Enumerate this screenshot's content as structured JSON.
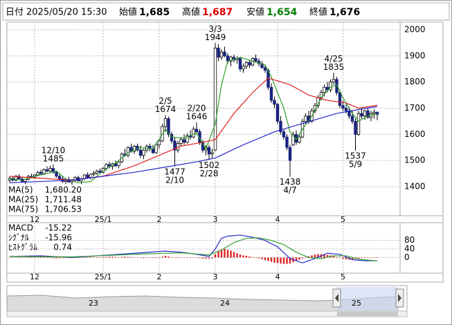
{
  "header": {
    "date_label": "日付",
    "datetime": "2025/05/20 15:30",
    "fields": [
      {
        "label": "始値",
        "value": "1,685"
      },
      {
        "label": "高値",
        "value": "1,687"
      },
      {
        "label": "安値",
        "value": "1,654"
      },
      {
        "label": "終値",
        "value": "1,676"
      }
    ]
  },
  "chart_data": {
    "type": "candlestick",
    "ylim": [
      1289,
      2029
    ],
    "yticks": [
      1400,
      1500,
      1600,
      1700,
      1800,
      1900,
      2000
    ],
    "grid": true,
    "xticks": [
      {
        "value": 8,
        "label": "12"
      },
      {
        "value": 30,
        "label": "25/1"
      },
      {
        "value": 48,
        "label": "2"
      },
      {
        "value": 66,
        "label": "3"
      },
      {
        "value": 86,
        "label": "4"
      },
      {
        "value": 107,
        "label": "5"
      }
    ],
    "up_color": "#ffffff",
    "down_color": "#1a237e",
    "ohlc": [
      [
        1425,
        1440,
        1415,
        1432
      ],
      [
        1432,
        1438,
        1420,
        1425
      ],
      [
        1425,
        1445,
        1420,
        1440
      ],
      [
        1440,
        1448,
        1428,
        1430
      ],
      [
        1430,
        1436,
        1415,
        1420
      ],
      [
        1420,
        1430,
        1410,
        1428
      ],
      [
        1428,
        1445,
        1425,
        1440
      ],
      [
        1440,
        1450,
        1432,
        1436
      ],
      [
        1436,
        1448,
        1430,
        1445
      ],
      [
        1445,
        1460,
        1440,
        1455
      ],
      [
        1455,
        1465,
        1445,
        1450
      ],
      [
        1450,
        1470,
        1448,
        1465
      ],
      [
        1465,
        1478,
        1455,
        1460
      ],
      [
        1460,
        1480,
        1455,
        1470
      ],
      [
        1470,
        1485,
        1450,
        1455
      ],
      [
        1455,
        1460,
        1435,
        1440
      ],
      [
        1440,
        1448,
        1425,
        1430
      ],
      [
        1430,
        1440,
        1415,
        1420
      ],
      [
        1420,
        1432,
        1410,
        1428
      ],
      [
        1428,
        1438,
        1415,
        1418
      ],
      [
        1418,
        1430,
        1405,
        1425
      ],
      [
        1425,
        1440,
        1418,
        1435
      ],
      [
        1435,
        1442,
        1420,
        1422
      ],
      [
        1422,
        1435,
        1410,
        1430
      ],
      [
        1430,
        1448,
        1425,
        1445
      ],
      [
        1445,
        1455,
        1430,
        1435
      ],
      [
        1435,
        1450,
        1428,
        1448
      ],
      [
        1448,
        1460,
        1440,
        1452
      ],
      [
        1452,
        1465,
        1445,
        1460
      ],
      [
        1460,
        1470,
        1450,
        1455
      ],
      [
        1455,
        1475,
        1450,
        1470
      ],
      [
        1470,
        1490,
        1462,
        1485
      ],
      [
        1485,
        1495,
        1470,
        1478
      ],
      [
        1478,
        1492,
        1465,
        1488
      ],
      [
        1488,
        1500,
        1475,
        1480
      ],
      [
        1480,
        1498,
        1470,
        1495
      ],
      [
        1495,
        1530,
        1490,
        1525
      ],
      [
        1525,
        1545,
        1515,
        1520
      ],
      [
        1520,
        1555,
        1512,
        1550
      ],
      [
        1550,
        1565,
        1530,
        1535
      ],
      [
        1535,
        1560,
        1525,
        1555
      ],
      [
        1555,
        1565,
        1535,
        1540
      ],
      [
        1540,
        1558,
        1510,
        1520
      ],
      [
        1520,
        1545,
        1505,
        1540
      ],
      [
        1540,
        1562,
        1530,
        1555
      ],
      [
        1555,
        1565,
        1535,
        1545
      ],
      [
        1545,
        1560,
        1525,
        1530
      ],
      [
        1530,
        1568,
        1525,
        1560
      ],
      [
        1560,
        1580,
        1545,
        1575
      ],
      [
        1575,
        1640,
        1570,
        1630
      ],
      [
        1630,
        1674,
        1610,
        1660
      ],
      [
        1660,
        1668,
        1590,
        1600
      ],
      [
        1600,
        1610,
        1565,
        1575
      ],
      [
        1575,
        1590,
        1477,
        1540
      ],
      [
        1540,
        1575,
        1530,
        1565
      ],
      [
        1565,
        1590,
        1555,
        1580
      ],
      [
        1580,
        1600,
        1560,
        1570
      ],
      [
        1570,
        1605,
        1565,
        1595
      ],
      [
        1595,
        1615,
        1580,
        1590
      ],
      [
        1590,
        1630,
        1585,
        1620
      ],
      [
        1620,
        1646,
        1600,
        1610
      ],
      [
        1610,
        1620,
        1560,
        1570
      ],
      [
        1570,
        1580,
        1530,
        1540
      ],
      [
        1540,
        1560,
        1520,
        1550
      ],
      [
        1550,
        1560,
        1502,
        1525
      ],
      [
        1525,
        1545,
        1510,
        1530
      ],
      [
        1540,
        1949,
        1535,
        1930
      ],
      [
        1930,
        1945,
        1880,
        1895
      ],
      [
        1895,
        1925,
        1885,
        1915
      ],
      [
        1915,
        1935,
        1895,
        1900
      ],
      [
        1900,
        1910,
        1870,
        1880
      ],
      [
        1880,
        1900,
        1860,
        1895
      ],
      [
        1895,
        1905,
        1875,
        1885
      ],
      [
        1885,
        1898,
        1870,
        1890
      ],
      [
        1890,
        1895,
        1840,
        1850
      ],
      [
        1850,
        1870,
        1835,
        1860
      ],
      [
        1860,
        1880,
        1850,
        1875
      ],
      [
        1875,
        1885,
        1855,
        1865
      ],
      [
        1865,
        1895,
        1860,
        1890
      ],
      [
        1890,
        1905,
        1875,
        1880
      ],
      [
        1880,
        1890,
        1860,
        1870
      ],
      [
        1870,
        1880,
        1850,
        1855
      ],
      [
        1855,
        1865,
        1835,
        1845
      ],
      [
        1845,
        1850,
        1770,
        1780
      ],
      [
        1780,
        1795,
        1720,
        1730
      ],
      [
        1730,
        1745,
        1700,
        1715
      ],
      [
        1715,
        1720,
        1640,
        1650
      ],
      [
        1650,
        1670,
        1600,
        1610
      ],
      [
        1610,
        1620,
        1580,
        1590
      ],
      [
        1590,
        1600,
        1540,
        1550
      ],
      [
        1550,
        1560,
        1438,
        1500
      ],
      [
        1560,
        1610,
        1555,
        1600
      ],
      [
        1600,
        1615,
        1560,
        1570
      ],
      [
        1570,
        1600,
        1565,
        1590
      ],
      [
        1590,
        1660,
        1585,
        1650
      ],
      [
        1650,
        1680,
        1640,
        1670
      ],
      [
        1670,
        1690,
        1640,
        1650
      ],
      [
        1650,
        1700,
        1645,
        1690
      ],
      [
        1690,
        1720,
        1680,
        1710
      ],
      [
        1710,
        1750,
        1700,
        1740
      ],
      [
        1740,
        1770,
        1730,
        1760
      ],
      [
        1760,
        1790,
        1745,
        1780
      ],
      [
        1780,
        1800,
        1760,
        1770
      ],
      [
        1770,
        1810,
        1760,
        1800
      ],
      [
        1800,
        1835,
        1790,
        1810
      ],
      [
        1810,
        1820,
        1750,
        1760
      ],
      [
        1760,
        1770,
        1700,
        1710
      ],
      [
        1710,
        1730,
        1690,
        1700
      ],
      [
        1700,
        1715,
        1680,
        1690
      ],
      [
        1690,
        1705,
        1660,
        1670
      ],
      [
        1670,
        1690,
        1640,
        1650
      ],
      [
        1650,
        1660,
        1537,
        1600
      ],
      [
        1600,
        1690,
        1595,
        1680
      ],
      [
        1680,
        1700,
        1660,
        1670
      ],
      [
        1670,
        1695,
        1655,
        1690
      ],
      [
        1690,
        1700,
        1660,
        1665
      ],
      [
        1665,
        1690,
        1650,
        1680
      ],
      [
        1680,
        1695,
        1660,
        1685
      ],
      [
        1685,
        1687,
        1654,
        1676
      ]
    ],
    "annotations": [
      {
        "index": 14,
        "date": "12/10",
        "price": 1485,
        "pos": "above"
      },
      {
        "index": 50,
        "date": "2/5",
        "price": 1674,
        "pos": "above"
      },
      {
        "index": 53,
        "date": "2/10",
        "price": 1477,
        "pos": "below"
      },
      {
        "index": 60,
        "date": "2/20",
        "price": 1646,
        "pos": "above"
      },
      {
        "index": 64,
        "date": "2/28",
        "price": 1502,
        "pos": "below"
      },
      {
        "index": 66,
        "date": "3/3",
        "price": 1949,
        "pos": "above"
      },
      {
        "index": 90,
        "date": "4/7",
        "price": 1438,
        "pos": "below"
      },
      {
        "index": 104,
        "date": "4/25",
        "price": 1835,
        "pos": "above"
      },
      {
        "index": 111,
        "date": "5/9",
        "price": 1537,
        "pos": "below"
      }
    ],
    "ma": [
      {
        "name": "MA(5)",
        "color": "#2e9e2e",
        "current": {
          "value": 1680.2,
          "label": "1,680.20"
        },
        "x": [
          0,
          4,
          8,
          12,
          15,
          18,
          22,
          26,
          30,
          34,
          38,
          42,
          46,
          50,
          52,
          56,
          60,
          63,
          66,
          68,
          70,
          74,
          78,
          82,
          84,
          86,
          88,
          90,
          92,
          94,
          97,
          100,
          103,
          105,
          107,
          110,
          112,
          115,
          118
        ],
        "values": [
          1430,
          1425,
          1440,
          1450,
          1460,
          1430,
          1415,
          1420,
          1460,
          1490,
          1530,
          1550,
          1545,
          1620,
          1590,
          1585,
          1605,
          1545,
          1640,
          1790,
          1880,
          1895,
          1880,
          1865,
          1820,
          1760,
          1700,
          1610,
          1580,
          1620,
          1670,
          1740,
          1780,
          1790,
          1740,
          1680,
          1650,
          1670,
          1680.2
        ]
      },
      {
        "name": "MA(25)",
        "color": "#e02020",
        "current": {
          "value": 1711.48,
          "label": "1,711.48"
        },
        "x": [
          0,
          10,
          20,
          30,
          40,
          50,
          55,
          62,
          66,
          72,
          78,
          83,
          90,
          96,
          102,
          108,
          112,
          118
        ],
        "values": [
          1440,
          1432,
          1425,
          1440,
          1480,
          1530,
          1555,
          1570,
          1580,
          1680,
          1760,
          1815,
          1790,
          1750,
          1730,
          1720,
          1700,
          1711.48
        ]
      },
      {
        "name": "MA(75)",
        "color": "#2424d0",
        "current": {
          "value": 1706.53,
          "label": "1,706.53"
        },
        "x": [
          0,
          10,
          20,
          30,
          40,
          50,
          60,
          66,
          75,
          85,
          95,
          105,
          112,
          118
        ],
        "values": [
          1415,
          1420,
          1425,
          1440,
          1455,
          1475,
          1495,
          1510,
          1560,
          1610,
          1645,
          1680,
          1695,
          1706.53
        ]
      }
    ],
    "macd": {
      "ylim": [
        -73,
        163
      ],
      "yticks": [
        0,
        40,
        80
      ],
      "lines": [
        {
          "name": "MACD",
          "color": "#2424d0",
          "current": {
            "value": -15.22,
            "label": "-15.22"
          },
          "x": [
            0,
            10,
            20,
            30,
            40,
            50,
            55,
            60,
            64,
            66,
            68,
            70,
            74,
            78,
            82,
            86,
            90,
            94,
            98,
            102,
            106,
            110,
            114,
            118
          ],
          "values": [
            5,
            8,
            0,
            10,
            20,
            30,
            25,
            15,
            5,
            40,
            90,
            100,
            105,
            95,
            80,
            50,
            -5,
            -25,
            -5,
            20,
            15,
            -10,
            -15,
            -15.22
          ]
        },
        {
          "name": "ｼｸﾞﾅﾙ",
          "color": "#2e9e2e",
          "current": {
            "value": -15.96,
            "label": "-15.96"
          },
          "x": [
            0,
            20,
            40,
            55,
            64,
            68,
            72,
            76,
            80,
            84,
            88,
            92,
            96,
            100,
            104,
            108,
            112,
            118
          ],
          "values": [
            5,
            3,
            15,
            22,
            12,
            35,
            70,
            90,
            92,
            80,
            60,
            25,
            0,
            -5,
            8,
            8,
            -8,
            -15.96
          ]
        }
      ],
      "histogram": {
        "name": "ﾋｽﾄｸﾞﾗﾑ",
        "color": "#e02020",
        "current": {
          "value": 0.74,
          "label": "0.74"
        },
        "values": [
          2,
          1,
          -1,
          -2,
          0,
          1,
          2,
          3,
          2,
          1,
          3,
          4,
          2,
          -1,
          -3,
          -4,
          -3,
          -2,
          -1,
          0,
          1,
          2,
          1,
          -1,
          0,
          2,
          3,
          2,
          1,
          0,
          2,
          3,
          4,
          4,
          3,
          2,
          3,
          4,
          3,
          2,
          1,
          0,
          -2,
          -3,
          -1,
          0,
          -1,
          -2,
          1,
          4,
          8,
          5,
          2,
          -1,
          -2,
          -1,
          0,
          1,
          0,
          1,
          0,
          -3,
          -5,
          -6,
          -5,
          -4,
          15,
          30,
          38,
          40,
          36,
          32,
          26,
          20,
          14,
          10,
          8,
          5,
          2,
          0,
          -4,
          -8,
          -12,
          -16,
          -20,
          -24,
          -26,
          -28,
          -30,
          -30,
          -28,
          -22,
          -16,
          -10,
          -4,
          2,
          6,
          10,
          14,
          16,
          16,
          14,
          12,
          10,
          6,
          2,
          -2,
          -6,
          -8,
          -10,
          -8,
          -6,
          -4,
          -2,
          0,
          1,
          0,
          1,
          0.74
        ]
      }
    },
    "navigator": {
      "labels": [
        "23",
        "24",
        "25"
      ]
    }
  }
}
